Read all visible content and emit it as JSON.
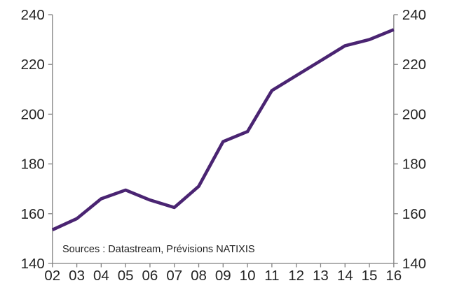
{
  "chart_data": {
    "type": "line",
    "title": "",
    "x": [
      "02",
      "03",
      "04",
      "05",
      "06",
      "07",
      "08",
      "09",
      "10",
      "11",
      "12",
      "13",
      "14",
      "15",
      "16"
    ],
    "series": [
      {
        "name": "index",
        "color": "#4a2472",
        "values": [
          153.5,
          158,
          166,
          169.5,
          165.5,
          162.5,
          171,
          189,
          193,
          209.5,
          215.5,
          221.5,
          227.5,
          230,
          234
        ]
      }
    ],
    "ylim": [
      140,
      240
    ],
    "yticks": [
      140,
      160,
      180,
      200,
      220,
      240
    ],
    "dual_y_axis": true,
    "grid": false,
    "legend": "none",
    "axis_color": "#808080",
    "text_color": "#242424",
    "source_note": "Sources : Datastream, Prévisions NATIXIS"
  }
}
